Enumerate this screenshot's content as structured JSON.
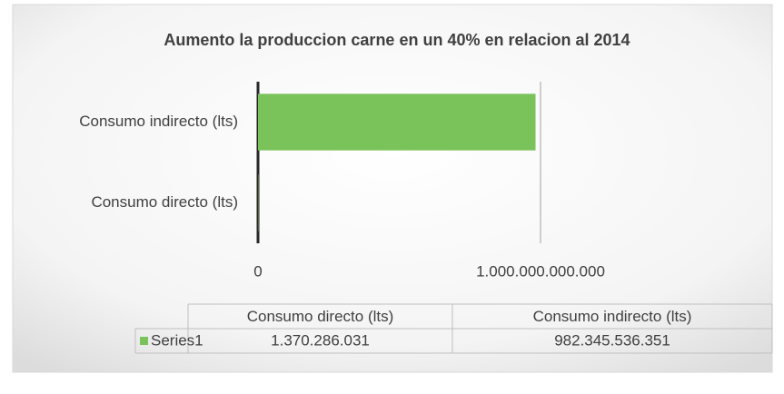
{
  "chart_data": {
    "type": "bar",
    "orientation": "horizontal",
    "title": "Aumento la produccion carne en un 40% en relacion al 2014",
    "categories": [
      "Consumo directo (lts)",
      "Consumo indirecto (lts)"
    ],
    "series": [
      {
        "name": "Series1",
        "color": "#7ac25a",
        "values": [
          1370286031,
          982345536351
        ],
        "value_labels": [
          "1.370.286.031",
          "982.345.536.351"
        ]
      }
    ],
    "xlim": [
      0,
      1000000000000
    ],
    "xticks": [
      0,
      {
        "value": 1000000000000,
        "label": "1.000.000.000.000"
      }
    ],
    "grid": true,
    "data_table": true
  }
}
